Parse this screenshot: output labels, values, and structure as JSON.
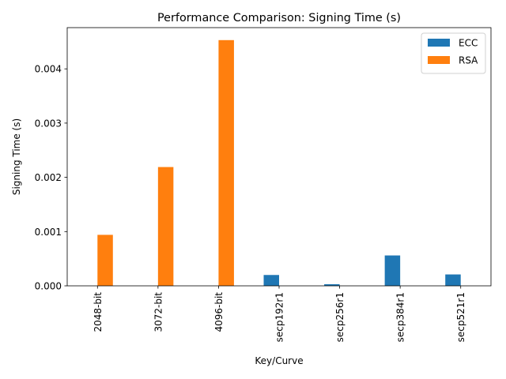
{
  "chart_data": {
    "type": "bar",
    "title": "Performance Comparison: Signing Time (s)",
    "xlabel": "Key/Curve",
    "ylabel": "Signing Time (s)",
    "categories": [
      "2048-bit",
      "3072-bit",
      "4096-bit",
      "secp192r1",
      "secp256r1",
      "secp384r1",
      "secp521r1"
    ],
    "series": [
      {
        "name": "ECC",
        "color": "#1f77b4",
        "values": [
          0,
          0,
          0,
          0.0002,
          3e-05,
          0.00056,
          0.00021
        ]
      },
      {
        "name": "RSA",
        "color": "#ff7f0e",
        "values": [
          0.00094,
          0.00219,
          0.00453,
          0,
          0,
          0,
          0
        ]
      }
    ],
    "yticks": [
      0.0,
      0.001,
      0.002,
      0.003,
      0.004
    ],
    "ytick_labels": [
      "0.000",
      "0.001",
      "0.002",
      "0.003",
      "0.004"
    ],
    "ylim": [
      0,
      0.00476
    ],
    "legend_position": "top-right",
    "grid": false
  }
}
